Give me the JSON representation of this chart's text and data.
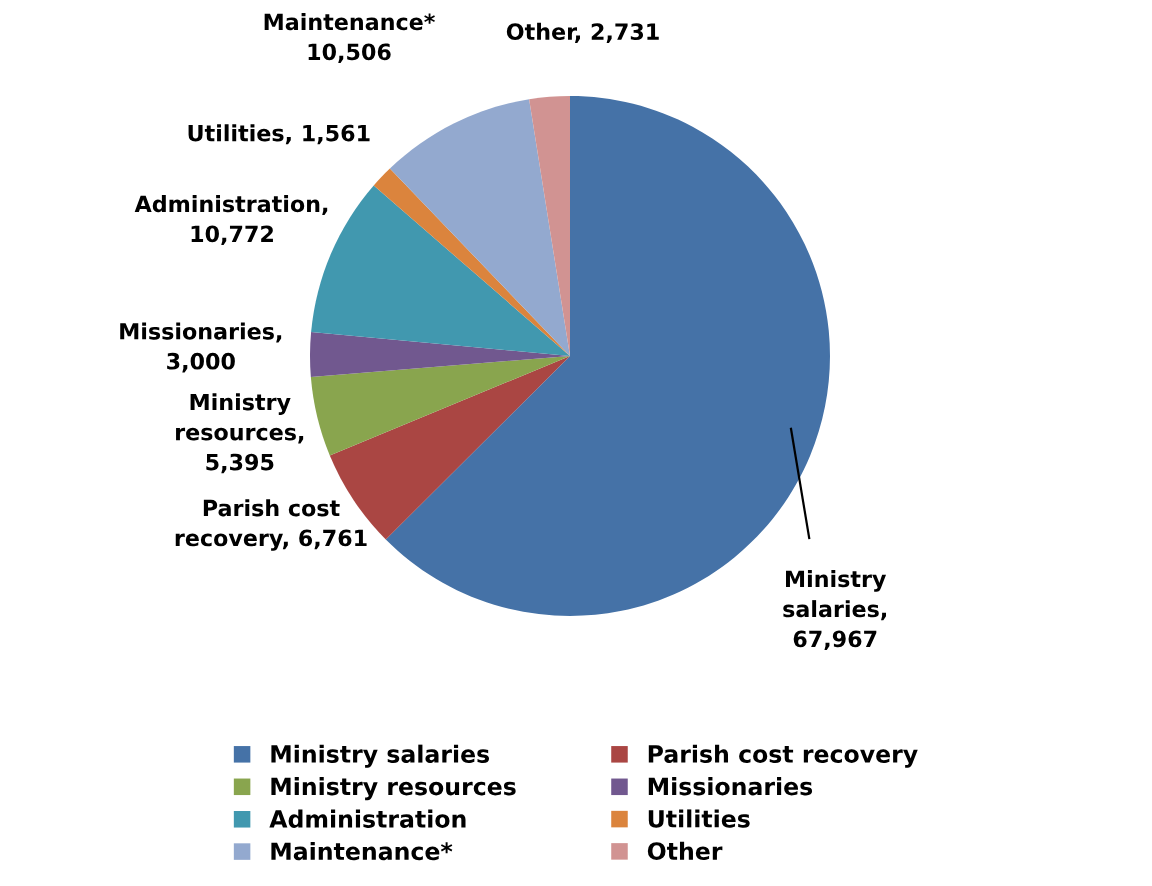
{
  "chart_data": {
    "type": "pie",
    "categories": [
      "Ministry salaries",
      "Parish cost recovery",
      "Ministry resources",
      "Missionaries",
      "Administration",
      "Utilities",
      "Maintenance*",
      "Other"
    ],
    "values": [
      67967,
      6761,
      5395,
      3000,
      10772,
      1561,
      10506,
      2731
    ],
    "colors": [
      "#4572a7",
      "#aa4643",
      "#89a54e",
      "#71588f",
      "#4198af",
      "#db843d",
      "#93a9cf",
      "#d19392"
    ],
    "value_labels": [
      "Ministry\nsalaries,\n67,967",
      "Parish cost\nrecovery, 6,761",
      "Ministry\nresources,\n5,395",
      "Missionaries,\n3,000",
      "Administration,\n10,772",
      "Utilities, 1,561",
      "Maintenance*\n10,506",
      "Other, 2,731"
    ],
    "legend": "bottom"
  }
}
